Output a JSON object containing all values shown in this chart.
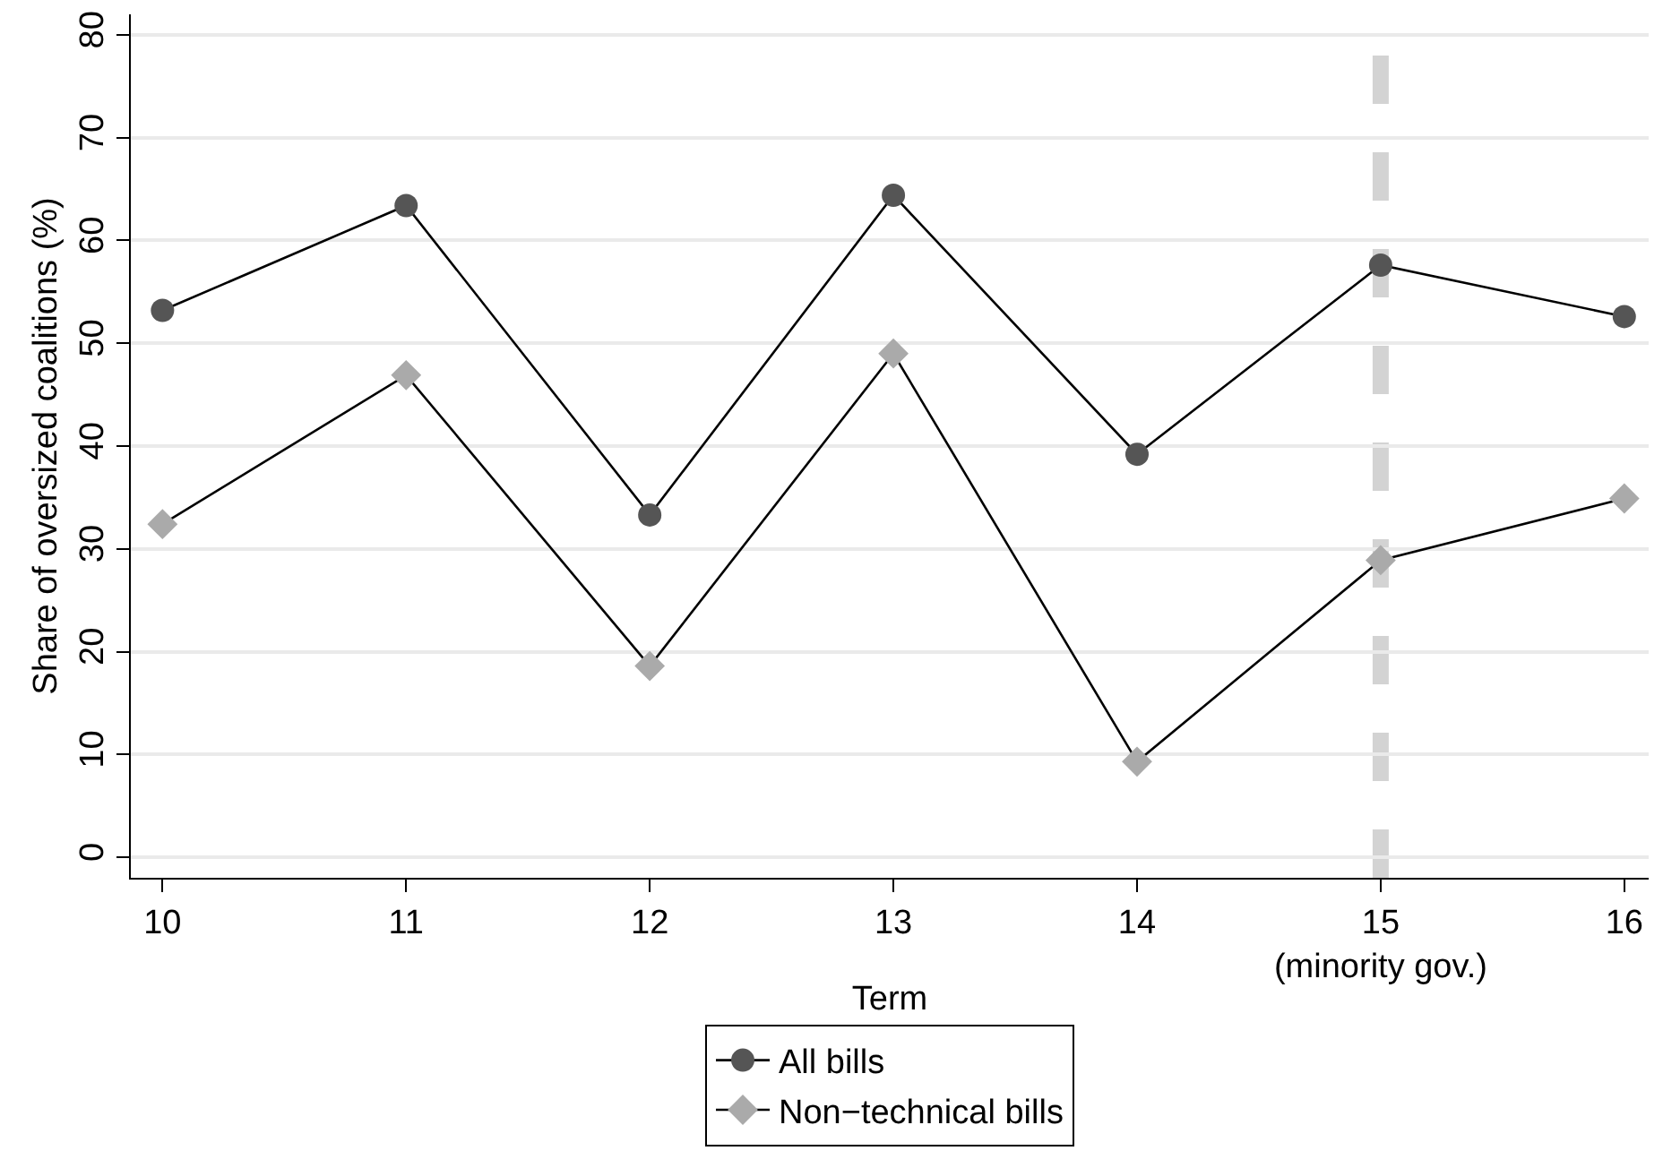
{
  "chart_data": {
    "type": "line",
    "xlabel": "Term",
    "ylabel": "Share of oversized coalitions (%)",
    "x": [
      10,
      11,
      12,
      13,
      14,
      15,
      16
    ],
    "series": [
      {
        "name": "All bills",
        "color": "#555555",
        "marker": "circle",
        "values": [
          53.2,
          63.4,
          33.3,
          64.4,
          39.2,
          57.6,
          52.6
        ]
      },
      {
        "name": "Non−technical bills",
        "color": "#aaaaaa",
        "marker": "diamond",
        "values": [
          32.4,
          46.9,
          18.6,
          49.0,
          9.3,
          28.9,
          34.9
        ]
      }
    ],
    "xlim": [
      9.87,
      16.1
    ],
    "xticks": [
      10,
      11,
      12,
      13,
      14,
      {
        "value": 15,
        "label": "15\n(minority gov.)"
      },
      16
    ],
    "ylim": [
      -2,
      82
    ],
    "yticks": [
      0,
      10,
      20,
      30,
      40,
      50,
      60,
      70,
      80
    ],
    "ref_lines": [
      {
        "axis": "x",
        "value": 15,
        "color": "#d3d3d3",
        "line_style": "dashed"
      }
    ],
    "grid": "y",
    "legend": "bottom"
  }
}
